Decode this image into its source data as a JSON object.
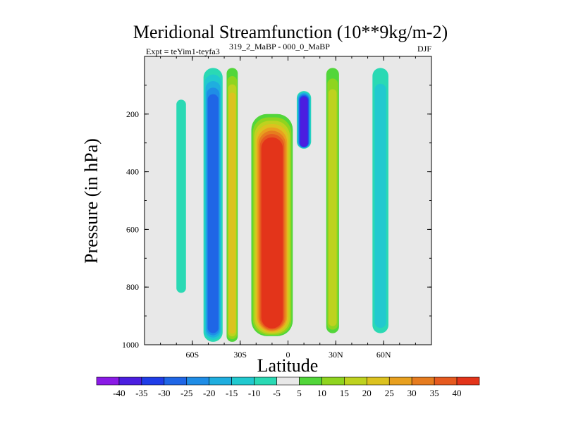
{
  "chart_data": {
    "type": "heatmap",
    "title": "Meridional Streamfunction (10**9kg/m-2)",
    "experiment_label": "Expt = teYim1-teyfa3",
    "experiment_detail": "319_2_MaBP - 000_0_MaBP",
    "season": "DJF",
    "xlabel": "Latitude",
    "ylabel": "Pressure (in hPa)",
    "xlim": [
      -90,
      90
    ],
    "ylim": [
      1000,
      0
    ],
    "x_ticks": [
      {
        "value": -60,
        "label": "60S"
      },
      {
        "value": -30,
        "label": "30S"
      },
      {
        "value": 0,
        "label": "0"
      },
      {
        "value": 30,
        "label": "30N"
      },
      {
        "value": 60,
        "label": "60N"
      }
    ],
    "y_ticks": [
      {
        "value": 200,
        "label": "200"
      },
      {
        "value": 400,
        "label": "400"
      },
      {
        "value": 600,
        "label": "600"
      },
      {
        "value": 800,
        "label": "800"
      },
      {
        "value": 1000,
        "label": "1000"
      }
    ],
    "levels": [
      -40,
      -35,
      -30,
      -25,
      -20,
      -15,
      -10,
      -5,
      5,
      10,
      15,
      20,
      25,
      30,
      35,
      40
    ],
    "level_labels": [
      "-40",
      "-35",
      "-30",
      "-25",
      "-20",
      "-15",
      "-10",
      "-5",
      "5",
      "10",
      "15",
      "20",
      "25",
      "30",
      "35",
      "40"
    ],
    "colors": [
      "#8a1ae6",
      "#4b1ee0",
      "#1f3de8",
      "#1f66e6",
      "#1f8de6",
      "#1faedf",
      "#21c9cf",
      "#2ad9b4",
      "#e8e8e8",
      "#52d63a",
      "#8fd41f",
      "#bed21f",
      "#dcc21f",
      "#e8a01f",
      "#e67c1f",
      "#e65a1f",
      "#e3341a"
    ],
    "background_color": "#e8e8e8",
    "features": [
      {
        "name": "southern-outer-cell",
        "lat_center": -47,
        "lat_width": 12,
        "p_top": 40,
        "p_bottom": 990,
        "value": -25
      },
      {
        "name": "southern-midlat-band",
        "lat_center": -35,
        "lat_width": 7,
        "p_top": 40,
        "p_bottom": 990,
        "value": 20
      },
      {
        "name": "hadley-cell",
        "lat_center": -10,
        "lat_width": 26,
        "p_top": 200,
        "p_bottom": 970,
        "value": 42
      },
      {
        "name": "northern-upper-cell",
        "lat_center": 10,
        "lat_width": 9,
        "p_top": 120,
        "p_bottom": 320,
        "value": -35
      },
      {
        "name": "northern-ferrel-band",
        "lat_center": 28,
        "lat_width": 8,
        "p_top": 40,
        "p_bottom": 960,
        "value": 15
      },
      {
        "name": "northern-polar-band",
        "lat_center": 58,
        "lat_width": 10,
        "p_top": 40,
        "p_bottom": 960,
        "value": -12
      },
      {
        "name": "southern-polar-band",
        "lat_center": -67,
        "lat_width": 6,
        "p_top": 150,
        "p_bottom": 820,
        "value": -8
      }
    ]
  }
}
